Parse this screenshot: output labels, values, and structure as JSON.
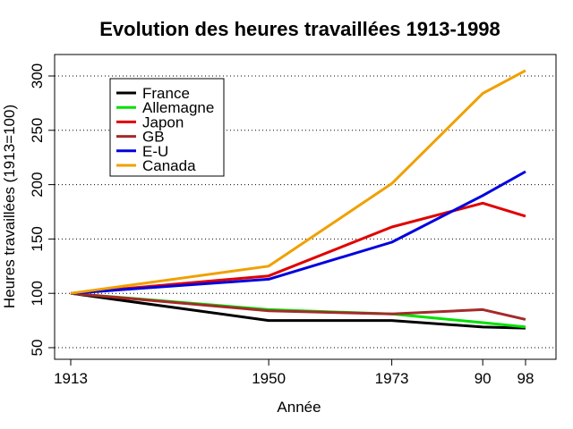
{
  "chart_data": {
    "type": "line",
    "title": "Evolution des heures travaillées 1913-1998",
    "xlabel": "Année",
    "ylabel": "Heures travaillées (1913=100)",
    "x": [
      1913,
      1950,
      1973,
      1990,
      1998
    ],
    "x_tick_labels": [
      "1913",
      "1950",
      "1973",
      "90",
      "98"
    ],
    "xlim": [
      1913,
      1998
    ],
    "ylim": [
      43,
      322
    ],
    "y_ticks": [
      50,
      100,
      150,
      200,
      250,
      300
    ],
    "y_tick_labels": [
      "50",
      "100",
      "150",
      "200",
      "250",
      "300"
    ],
    "grid": "horizontal dotted",
    "legend_position": "top-left",
    "series": [
      {
        "name": "France",
        "color": "#000000",
        "values": [
          100,
          75,
          75,
          69,
          68
        ]
      },
      {
        "name": "Allemagne",
        "color": "#00e000",
        "values": [
          100,
          85,
          81,
          73,
          69
        ]
      },
      {
        "name": "Japon",
        "color": "#e00000",
        "values": [
          100,
          116,
          161,
          183,
          171
        ]
      },
      {
        "name": "GB",
        "color": "#a52a2a",
        "values": [
          100,
          84,
          81,
          85,
          76
        ]
      },
      {
        "name": "E-U",
        "color": "#0000e0",
        "values": [
          100,
          113,
          147,
          190,
          212
        ]
      },
      {
        "name": "Canada",
        "color": "#f0a000",
        "values": [
          100,
          125,
          201,
          284,
          305
        ]
      }
    ]
  }
}
